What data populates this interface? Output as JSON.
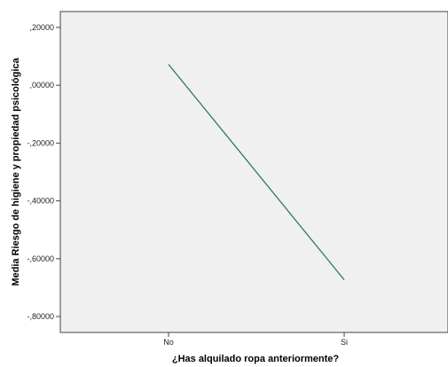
{
  "chart_data": {
    "type": "line",
    "title": "",
    "xlabel": "¿Has alquilado ropa anteriormente?",
    "ylabel": "Media Riesgo de higiene y propiedad psicológica",
    "categories": [
      "No",
      "Si"
    ],
    "series": [
      {
        "values": [
          0.072,
          -0.673
        ]
      }
    ],
    "ylim": [
      -0.855,
      0.255
    ],
    "yticks": [
      0.2,
      0.0,
      -0.2,
      -0.4,
      -0.6,
      -0.8
    ],
    "ytick_labels": [
      ",20000",
      ",00000",
      "-,20000",
      "-,40000",
      "-,60000",
      "-,80000"
    ],
    "grid": false,
    "line_color": "#2e7d5b",
    "plot_background": "#f0f0f0"
  }
}
